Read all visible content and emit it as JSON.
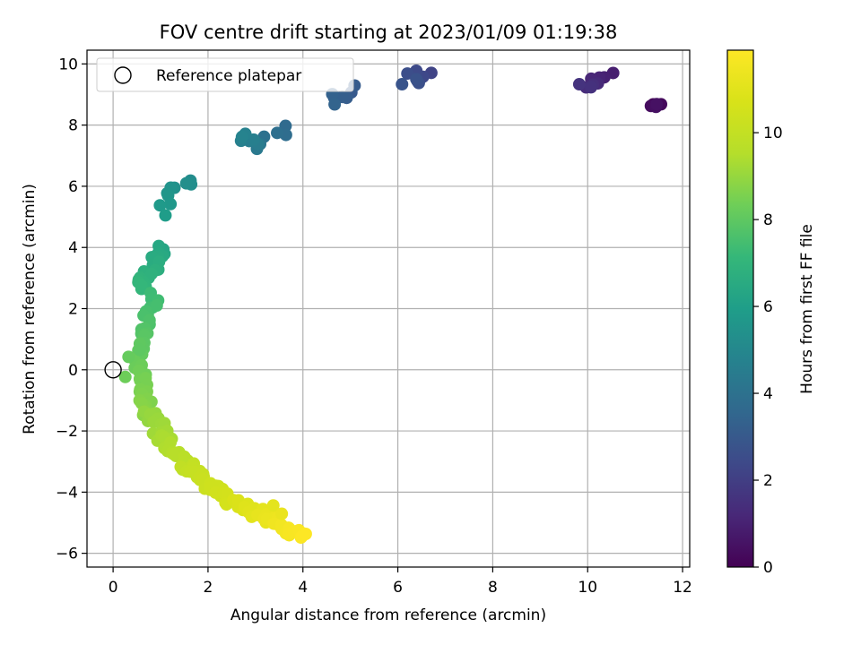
{
  "chart_data": {
    "type": "scatter",
    "title": "FOV centre drift starting at 2023/01/09 01:19:38",
    "xlabel": "Angular distance from reference (arcmin)",
    "ylabel": "Rotation from reference (arcmin)",
    "xlim": [
      -0.55,
      12.15
    ],
    "ylim": [
      -6.45,
      10.45
    ],
    "xticks": [
      0,
      2,
      4,
      6,
      8,
      10,
      12
    ],
    "yticks": [
      -6,
      -4,
      -2,
      0,
      2,
      4,
      6,
      8,
      10
    ],
    "grid": true,
    "legend": {
      "position": "top-left",
      "entries": [
        {
          "label": "Reference platepar",
          "marker": "open-circle"
        }
      ]
    },
    "reference_point": {
      "x": 0,
      "y": 0
    },
    "colorbar": {
      "label": "Hours from first FF file",
      "colormap": "viridis",
      "range": [
        0,
        11.9
      ],
      "ticks": [
        0,
        2,
        4,
        6,
        8,
        10
      ]
    },
    "segments": [
      {
        "from": {
          "x": 11.5,
          "y": 8.8,
          "t": 0.0
        },
        "to": {
          "x": 11.4,
          "y": 8.7,
          "t": 0.5
        },
        "count": 7
      },
      {
        "from": {
          "x": 10.4,
          "y": 9.6,
          "t": 0.9
        },
        "to": {
          "x": 9.9,
          "y": 9.2,
          "t": 1.6
        },
        "count": 9
      },
      {
        "from": {
          "x": 6.6,
          "y": 9.7,
          "t": 2.2
        },
        "to": {
          "x": 6.2,
          "y": 9.5,
          "t": 2.8
        },
        "count": 9
      },
      {
        "from": {
          "x": 5.1,
          "y": 9.2,
          "t": 3.0
        },
        "to": {
          "x": 4.6,
          "y": 8.8,
          "t": 3.4
        },
        "count": 7
      },
      {
        "from": {
          "x": 3.6,
          "y": 7.9,
          "t": 3.7
        },
        "to": {
          "x": 3.3,
          "y": 7.7,
          "t": 4.0
        },
        "count": 4
      },
      {
        "from": {
          "x": 3.1,
          "y": 7.3,
          "t": 4.2
        },
        "to": {
          "x": 2.7,
          "y": 7.6,
          "t": 4.8
        },
        "count": 10
      },
      {
        "from": {
          "x": 1.65,
          "y": 6.1,
          "t": 5.2
        },
        "to": {
          "x": 1.2,
          "y": 5.7,
          "t": 5.6
        },
        "count": 7
      },
      {
        "from": {
          "x": 1.1,
          "y": 5.3,
          "t": 5.7
        },
        "to": {
          "x": 1.0,
          "y": 5.2,
          "t": 5.9
        },
        "count": 3
      },
      {
        "from": {
          "x": 1.0,
          "y": 4.0,
          "t": 6.3
        },
        "to": {
          "x": 0.6,
          "y": 2.6,
          "t": 7.1
        },
        "count": 26
      },
      {
        "from": {
          "x": 0.85,
          "y": 2.4,
          "t": 7.3
        },
        "to": {
          "x": 0.55,
          "y": 0.5,
          "t": 8.1
        },
        "count": 22
      },
      {
        "from": {
          "x": 0.5,
          "y": 0.3,
          "t": 8.2
        },
        "to": {
          "x": 0.75,
          "y": -1.4,
          "t": 8.8
        },
        "count": 24
      },
      {
        "from": {
          "x": 0.7,
          "y": -1.4,
          "t": 8.9
        },
        "to": {
          "x": 1.6,
          "y": -3.2,
          "t": 9.8
        },
        "count": 34
      },
      {
        "from": {
          "x": 1.5,
          "y": -3.1,
          "t": 9.9
        },
        "to": {
          "x": 2.5,
          "y": -4.3,
          "t": 10.6
        },
        "count": 36
      },
      {
        "from": {
          "x": 2.6,
          "y": -4.3,
          "t": 10.7
        },
        "to": {
          "x": 4.0,
          "y": -5.5,
          "t": 11.9
        },
        "count": 40
      },
      {
        "from": {
          "x": 0.3,
          "y": -0.2,
          "t": 8.3
        },
        "to": {
          "x": 0.45,
          "y": 0.8,
          "t": 8.0
        },
        "count": 3
      },
      {
        "from": {
          "x": 3.4,
          "y": -4.3,
          "t": 11.1
        },
        "to": {
          "x": 3.6,
          "y": -4.6,
          "t": 11.3
        },
        "count": 2
      }
    ]
  }
}
